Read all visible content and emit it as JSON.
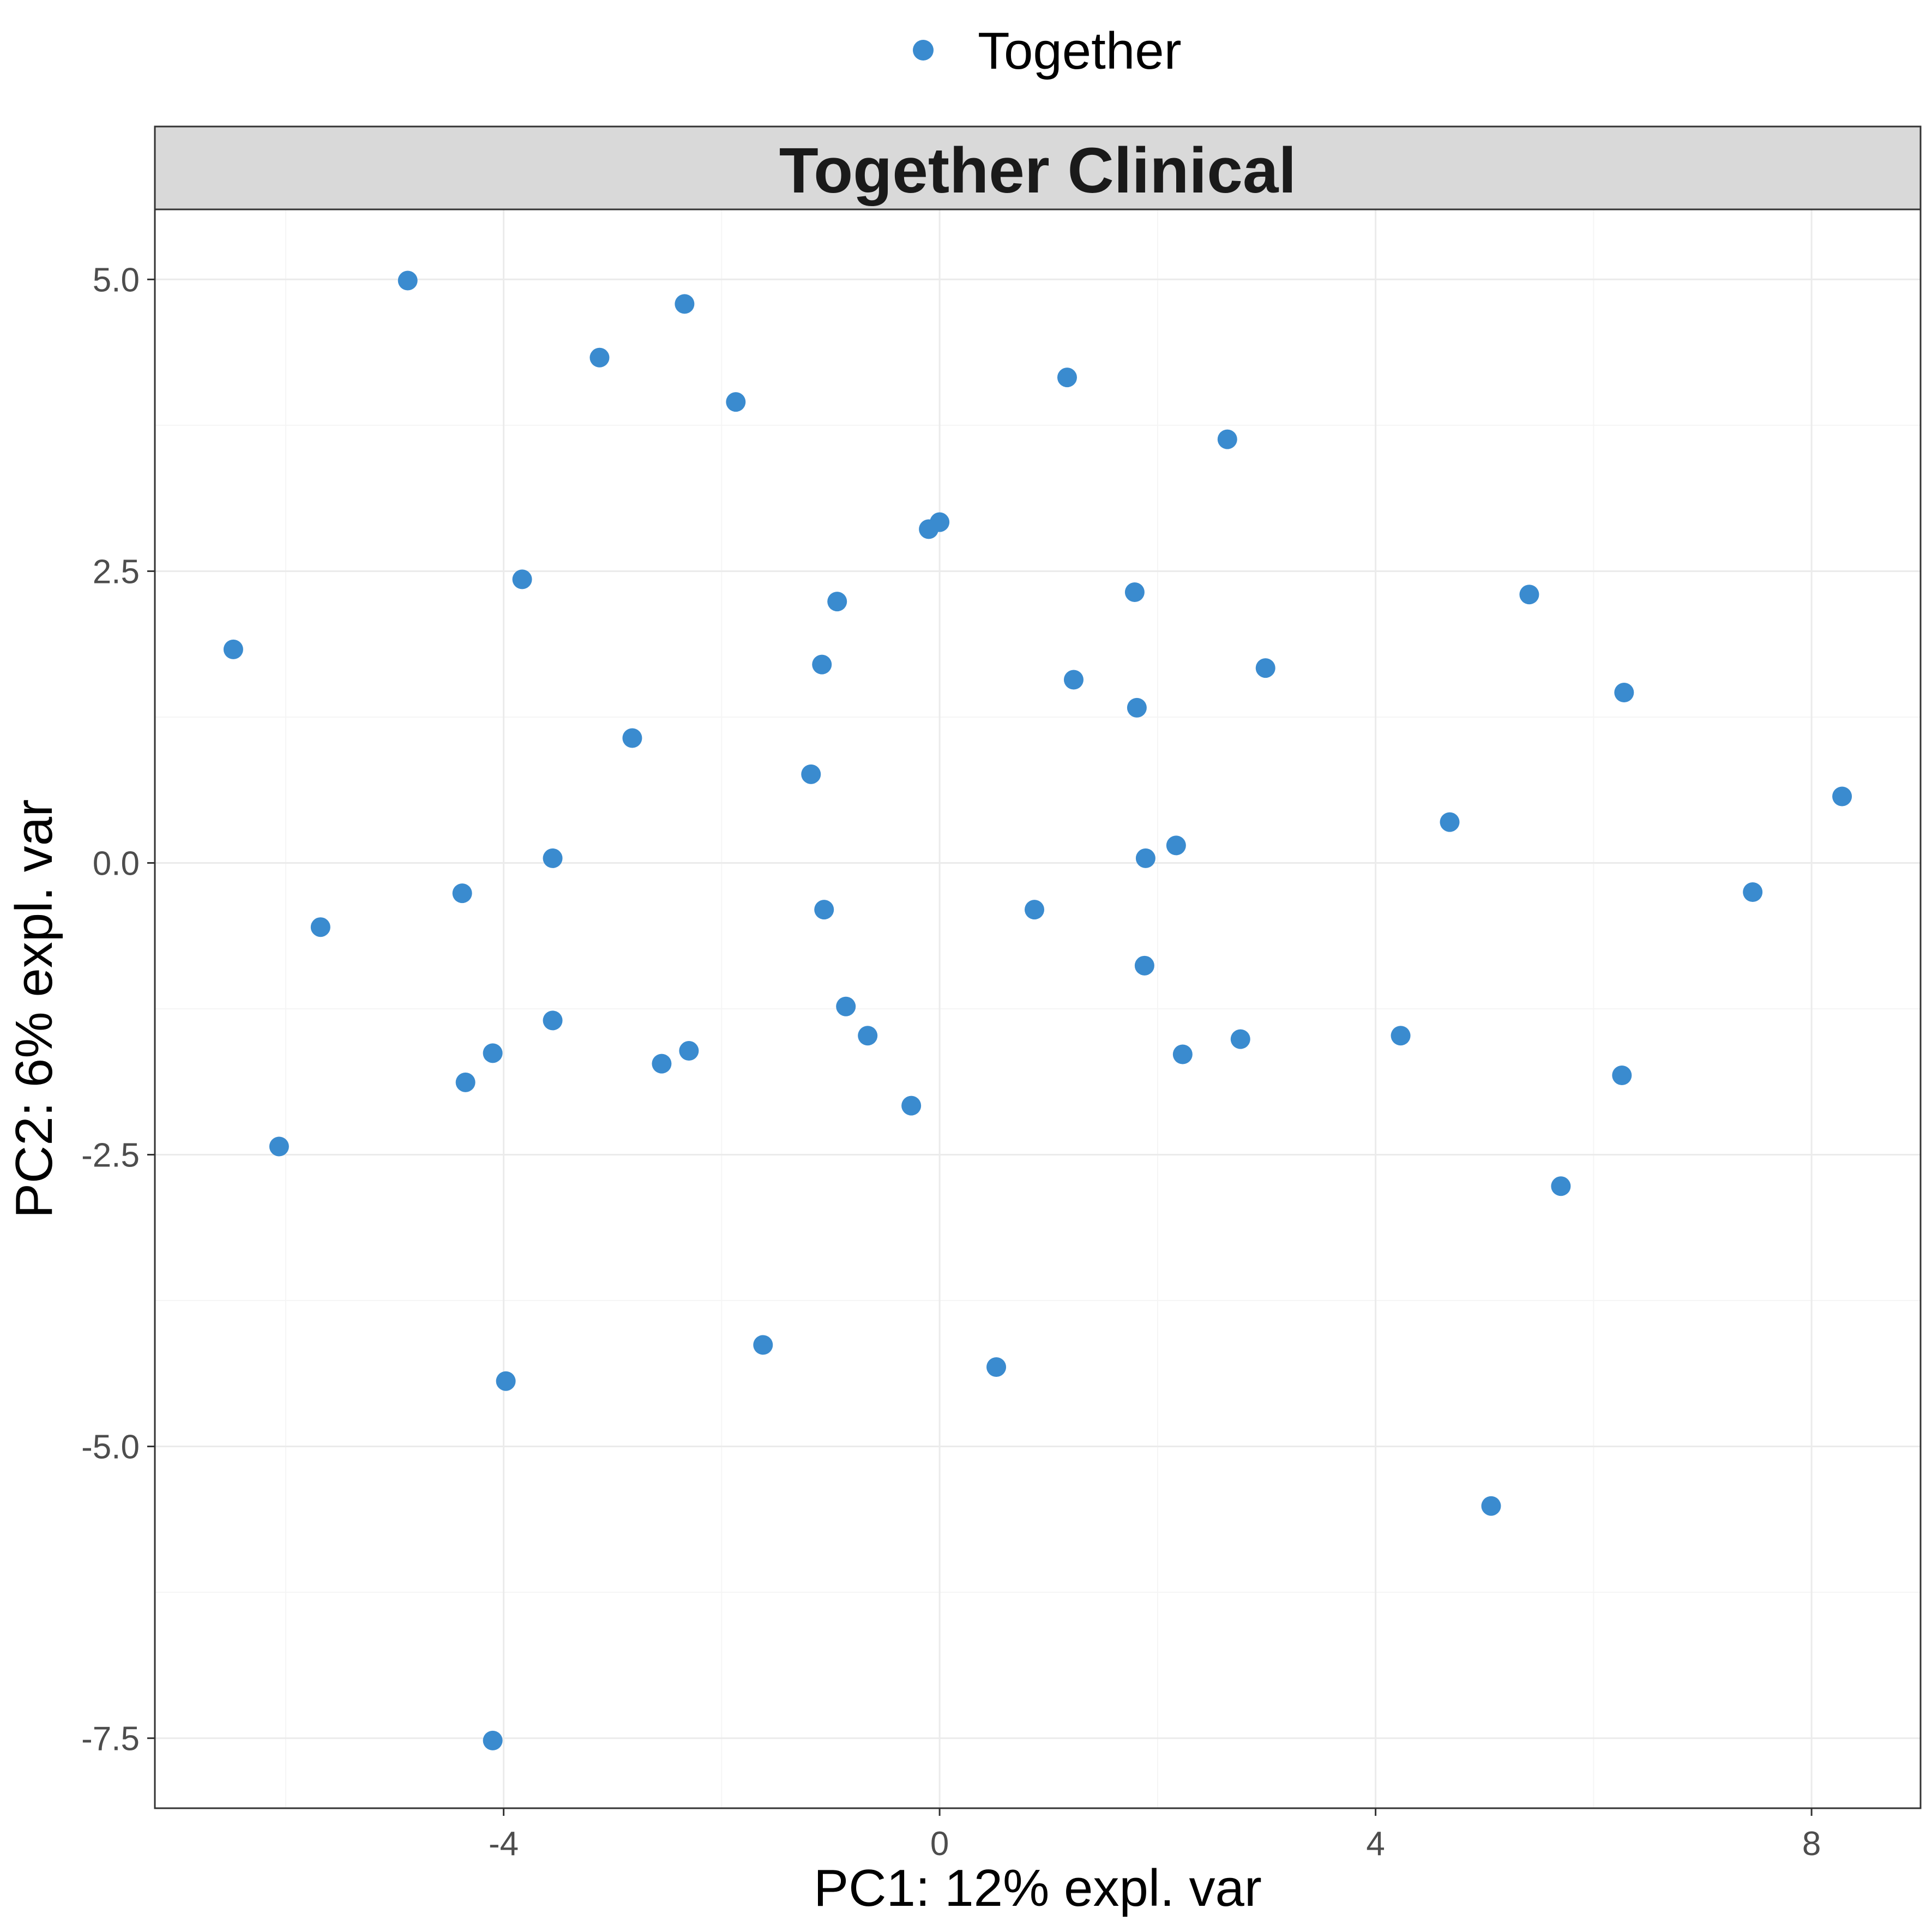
{
  "colors": {
    "point": "#3A8BCF",
    "strip_bg": "#D9D9D9",
    "grid_major": "#EBEBEB",
    "grid_minor": "#F5F5F5",
    "panel_border": "#333333"
  },
  "chart_data": {
    "type": "scatter",
    "title": "Together Clinical",
    "xlabel": "PC1: 12% expl. var",
    "ylabel": "PC2: 6% expl. var",
    "xlim": [
      -7.2,
      9.0
    ],
    "ylim": [
      -8.1,
      5.6
    ],
    "xticks": [
      -4,
      0,
      4,
      8
    ],
    "xtick_labels": [
      "-4",
      "0",
      "4",
      "8"
    ],
    "yticks": [
      5.0,
      2.5,
      0.0,
      -2.5,
      -5.0,
      -7.5
    ],
    "ytick_labels": [
      "5.0",
      "2.5",
      "0.0",
      "-2.5",
      "-5.0",
      "-7.5"
    ],
    "grid": true,
    "legend": {
      "position": "top",
      "entries": [
        "Together"
      ]
    },
    "series": [
      {
        "name": "Together",
        "points": [
          {
            "x": -6.48,
            "y": 1.83
          },
          {
            "x": -4.88,
            "y": 4.99
          },
          {
            "x": -2.34,
            "y": 4.79
          },
          {
            "x": -3.12,
            "y": 4.33
          },
          {
            "x": -1.87,
            "y": 3.95
          },
          {
            "x": -3.83,
            "y": 2.43
          },
          {
            "x": -0.1,
            "y": 2.86
          },
          {
            "x": 0.0,
            "y": 2.92
          },
          {
            "x": -0.94,
            "y": 2.24
          },
          {
            "x": -1.08,
            "y": 1.7
          },
          {
            "x": -2.82,
            "y": 1.07
          },
          {
            "x": -1.18,
            "y": 0.76
          },
          {
            "x": -3.55,
            "y": 0.04
          },
          {
            "x": -4.38,
            "y": -0.26
          },
          {
            "x": -5.68,
            "y": -0.55
          },
          {
            "x": -1.06,
            "y": -0.4
          },
          {
            "x": -3.55,
            "y": -1.35
          },
          {
            "x": -0.86,
            "y": -1.23
          },
          {
            "x": -0.66,
            "y": -1.48
          },
          {
            "x": -4.1,
            "y": -1.63
          },
          {
            "x": -4.35,
            "y": -1.88
          },
          {
            "x": -2.55,
            "y": -1.72
          },
          {
            "x": -2.3,
            "y": -1.61
          },
          {
            "x": -6.06,
            "y": -2.43
          },
          {
            "x": -0.26,
            "y": -2.08
          },
          {
            "x": -1.62,
            "y": -4.13
          },
          {
            "x": -3.98,
            "y": -4.44
          },
          {
            "x": -4.1,
            "y": -7.52
          },
          {
            "x": 1.17,
            "y": 4.16
          },
          {
            "x": 2.64,
            "y": 3.63
          },
          {
            "x": 1.79,
            "y": 2.32
          },
          {
            "x": 1.23,
            "y": 1.57
          },
          {
            "x": 2.99,
            "y": 1.67
          },
          {
            "x": 1.81,
            "y": 1.33
          },
          {
            "x": 1.89,
            "y": 0.04
          },
          {
            "x": 2.17,
            "y": 0.15
          },
          {
            "x": 0.87,
            "y": -0.4
          },
          {
            "x": 1.88,
            "y": -0.88
          },
          {
            "x": 2.23,
            "y": -1.64
          },
          {
            "x": 2.76,
            "y": -1.51
          },
          {
            "x": 0.52,
            "y": -4.32
          },
          {
            "x": 5.41,
            "y": 2.3
          },
          {
            "x": 6.28,
            "y": 1.46
          },
          {
            "x": 4.68,
            "y": 0.35
          },
          {
            "x": 8.28,
            "y": 0.57
          },
          {
            "x": 7.46,
            "y": -0.25
          },
          {
            "x": 4.23,
            "y": -1.48
          },
          {
            "x": 6.26,
            "y": -1.82
          },
          {
            "x": 5.7,
            "y": -2.77
          },
          {
            "x": 5.06,
            "y": -5.51
          }
        ]
      }
    ]
  }
}
